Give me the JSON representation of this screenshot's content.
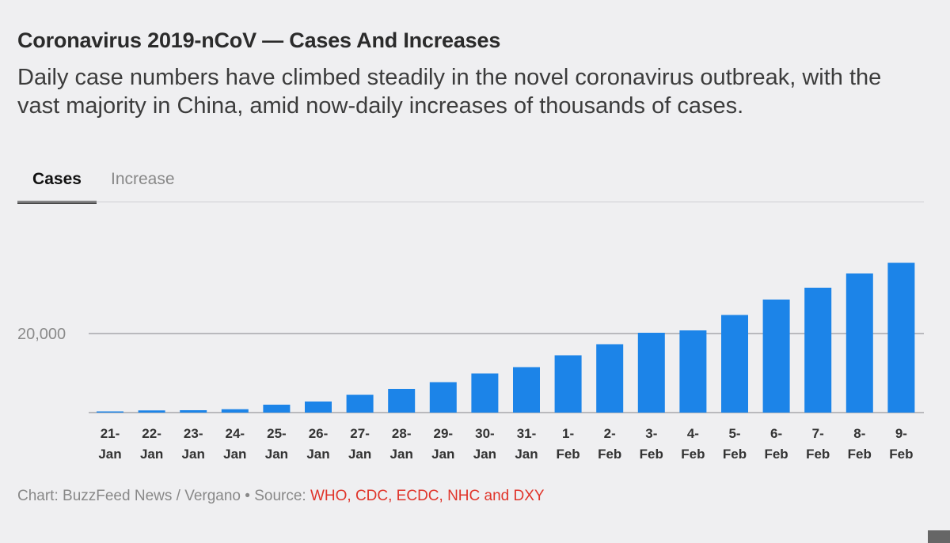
{
  "header": {
    "title": "Coronavirus 2019-nCoV — Cases And Increases",
    "subtitle": "Daily case numbers have climbed steadily in the novel coronavirus outbreak, with the vast majority in China, amid now-daily increases of thousands of cases."
  },
  "tabs": [
    {
      "label": "Cases",
      "active": true
    },
    {
      "label": "Increase",
      "active": false
    }
  ],
  "footer": {
    "credit": "Chart: BuzzFeed News / Vergano",
    "separator": " • ",
    "source_label": "Source: ",
    "source": "WHO, CDC, ECDC, NHC and DXY"
  },
  "colors": {
    "bar": "#1c84e8",
    "gridline": "#b9b9bd",
    "source_link": "#e0342a"
  },
  "chart_data": {
    "type": "bar",
    "categories": [
      [
        "21-",
        "Jan"
      ],
      [
        "22-",
        "Jan"
      ],
      [
        "23-",
        "Jan"
      ],
      [
        "24-",
        "Jan"
      ],
      [
        "25-",
        "Jan"
      ],
      [
        "26-",
        "Jan"
      ],
      [
        "27-",
        "Jan"
      ],
      [
        "28-",
        "Jan"
      ],
      [
        "29-",
        "Jan"
      ],
      [
        "30-",
        "Jan"
      ],
      [
        "31-",
        "Jan"
      ],
      [
        "1-",
        "Feb"
      ],
      [
        "2-",
        "Feb"
      ],
      [
        "3-",
        "Feb"
      ],
      [
        "4-",
        "Feb"
      ],
      [
        "5-",
        "Feb"
      ],
      [
        "6-",
        "Feb"
      ],
      [
        "7-",
        "Feb"
      ],
      [
        "8-",
        "Feb"
      ],
      [
        "9-",
        "Feb"
      ]
    ],
    "values": [
      300,
      550,
      600,
      850,
      2000,
      2800,
      4500,
      6000,
      7700,
      9900,
      11500,
      14500,
      17300,
      20200,
      20800,
      24700,
      28600,
      31600,
      35200,
      37900
    ],
    "ylim": [
      0,
      40000
    ],
    "yticks": [
      {
        "value": 20000,
        "label": "20,000"
      }
    ],
    "xlabel": "",
    "ylabel": "",
    "grid": true
  }
}
